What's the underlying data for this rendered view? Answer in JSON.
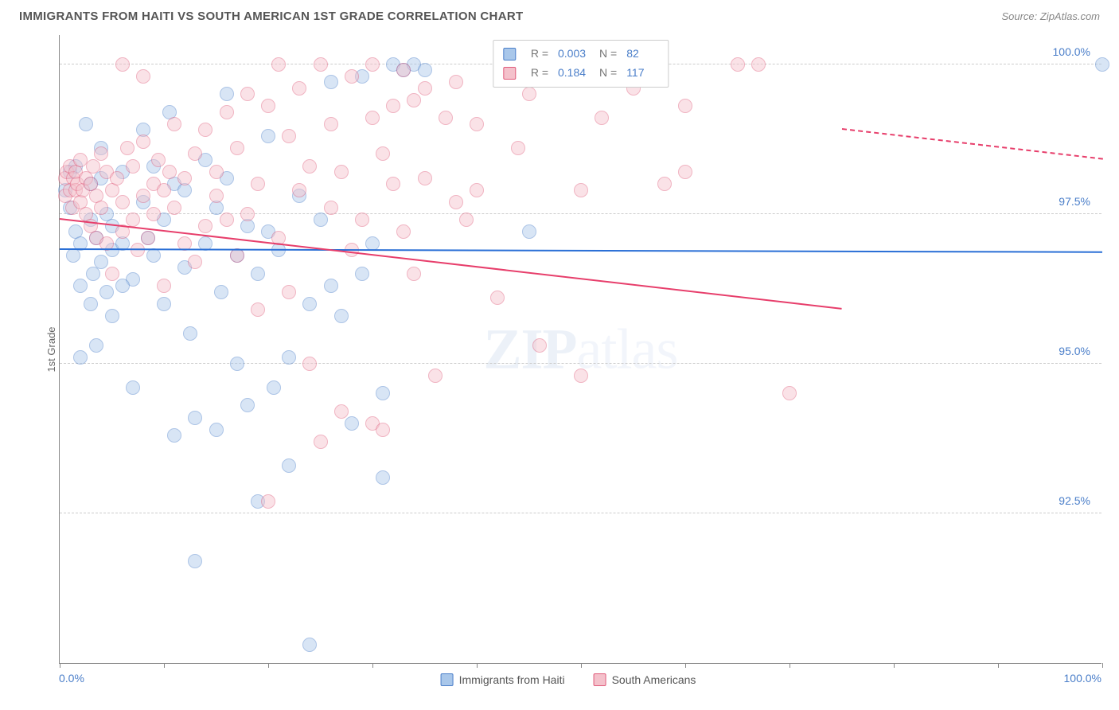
{
  "title": "IMMIGRANTS FROM HAITI VS SOUTH AMERICAN 1ST GRADE CORRELATION CHART",
  "source": "Source: ZipAtlas.com",
  "y_axis_title": "1st Grade",
  "watermark": {
    "part1": "ZIP",
    "part2": "atlas",
    "color1": "#9ab6dd",
    "color2": "#b9cdea"
  },
  "chart": {
    "type": "scatter",
    "background_color": "#ffffff",
    "grid_color": "#cccccc",
    "axis_color": "#888888",
    "xlim": [
      0,
      100
    ],
    "ylim": [
      90,
      100.5
    ],
    "x_ticks": [
      0,
      10,
      20,
      30,
      40,
      50,
      60,
      70,
      80,
      90,
      100
    ],
    "x_label_start": "0.0%",
    "x_label_end": "100.0%",
    "y_grid": [
      {
        "v": 92.5,
        "label": "92.5%"
      },
      {
        "v": 95.0,
        "label": "95.0%"
      },
      {
        "v": 97.5,
        "label": "97.5%"
      },
      {
        "v": 100.0,
        "label": "100.0%"
      }
    ],
    "y_label_color": "#4a7ec9",
    "marker_radius": 9,
    "marker_opacity": 0.45,
    "series": [
      {
        "key": "haiti",
        "name": "Immigrants from Haiti",
        "R": "0.003",
        "N": "82",
        "fill": "#a9c7ea",
        "stroke": "#4a7ec9",
        "trend_color": "#2a6fd6",
        "trend_y_at_xmin": 96.9,
        "trend_y_at_xmax": 96.95,
        "solid_until_x": 100,
        "points": [
          [
            0.5,
            97.9
          ],
          [
            1,
            98.2
          ],
          [
            1,
            97.6
          ],
          [
            1.3,
            96.8
          ],
          [
            1.5,
            97.2
          ],
          [
            1.5,
            98.3
          ],
          [
            2,
            97.0
          ],
          [
            2,
            96.3
          ],
          [
            2,
            95.1
          ],
          [
            2.5,
            99.0
          ],
          [
            3,
            98.0
          ],
          [
            3,
            97.4
          ],
          [
            3,
            96.0
          ],
          [
            3.2,
            96.5
          ],
          [
            3.5,
            97.1
          ],
          [
            3.5,
            95.3
          ],
          [
            4,
            98.6
          ],
          [
            4,
            96.7
          ],
          [
            4.5,
            96.2
          ],
          [
            4.5,
            97.5
          ],
          [
            5,
            96.9
          ],
          [
            5,
            97.3
          ],
          [
            5,
            95.8
          ],
          [
            6,
            97.0
          ],
          [
            6,
            98.2
          ],
          [
            7,
            96.4
          ],
          [
            7,
            94.6
          ],
          [
            8,
            97.7
          ],
          [
            8,
            98.9
          ],
          [
            8.5,
            97.1
          ],
          [
            9,
            98.3
          ],
          [
            9,
            96.8
          ],
          [
            10,
            96.0
          ],
          [
            10,
            97.4
          ],
          [
            10.5,
            99.2
          ],
          [
            11,
            98.0
          ],
          [
            11,
            93.8
          ],
          [
            12,
            96.6
          ],
          [
            12,
            97.9
          ],
          [
            12.5,
            95.5
          ],
          [
            13,
            94.1
          ],
          [
            13,
            91.7
          ],
          [
            14,
            98.4
          ],
          [
            14,
            97.0
          ],
          [
            15,
            93.9
          ],
          [
            15,
            97.6
          ],
          [
            15.5,
            96.2
          ],
          [
            16,
            98.1
          ],
          [
            16,
            99.5
          ],
          [
            17,
            95.0
          ],
          [
            17,
            96.8
          ],
          [
            18,
            97.3
          ],
          [
            18,
            94.3
          ],
          [
            19,
            96.5
          ],
          [
            19,
            92.7
          ],
          [
            20,
            97.2
          ],
          [
            20,
            98.8
          ],
          [
            20.5,
            94.6
          ],
          [
            21,
            96.9
          ],
          [
            22,
            95.1
          ],
          [
            22,
            93.3
          ],
          [
            23,
            97.8
          ],
          [
            24,
            96.0
          ],
          [
            24,
            90.3
          ],
          [
            25,
            97.4
          ],
          [
            26,
            99.7
          ],
          [
            26,
            96.3
          ],
          [
            27,
            95.8
          ],
          [
            28,
            94.0
          ],
          [
            29,
            99.8
          ],
          [
            29,
            96.5
          ],
          [
            30,
            97.0
          ],
          [
            31,
            94.5
          ],
          [
            31,
            93.1
          ],
          [
            32,
            100.0
          ],
          [
            33,
            99.9
          ],
          [
            34,
            100.0
          ],
          [
            35,
            99.9
          ],
          [
            45,
            97.2
          ],
          [
            100,
            100.0
          ],
          [
            4,
            98.1
          ],
          [
            6,
            96.3
          ]
        ]
      },
      {
        "key": "sa",
        "name": "South Americans",
        "R": "0.184",
        "N": "117",
        "fill": "#f4c1cb",
        "stroke": "#e05a7a",
        "trend_color": "#e73e6b",
        "trend_y_at_xmin": 97.4,
        "trend_y_at_xmax": 99.4,
        "solid_until_x": 75,
        "points": [
          [
            0.5,
            98.1
          ],
          [
            0.5,
            97.8
          ],
          [
            0.7,
            98.2
          ],
          [
            1,
            97.9
          ],
          [
            1,
            98.3
          ],
          [
            1.2,
            97.6
          ],
          [
            1.3,
            98.1
          ],
          [
            1.5,
            98.2
          ],
          [
            1.5,
            97.9
          ],
          [
            1.7,
            98.0
          ],
          [
            2,
            97.7
          ],
          [
            2,
            98.4
          ],
          [
            2.2,
            97.9
          ],
          [
            2.5,
            98.1
          ],
          [
            2.5,
            97.5
          ],
          [
            3,
            98.0
          ],
          [
            3,
            97.3
          ],
          [
            3.2,
            98.3
          ],
          [
            3.5,
            97.8
          ],
          [
            3.5,
            97.1
          ],
          [
            4,
            98.5
          ],
          [
            4,
            97.6
          ],
          [
            4.5,
            97.0
          ],
          [
            4.5,
            98.2
          ],
          [
            5,
            97.9
          ],
          [
            5,
            96.5
          ],
          [
            5.5,
            98.1
          ],
          [
            6,
            97.7
          ],
          [
            6,
            97.2
          ],
          [
            6.5,
            98.6
          ],
          [
            7,
            97.4
          ],
          [
            7,
            98.3
          ],
          [
            7.5,
            96.9
          ],
          [
            8,
            97.8
          ],
          [
            8,
            98.7
          ],
          [
            8.5,
            97.1
          ],
          [
            9,
            98.0
          ],
          [
            9,
            97.5
          ],
          [
            9.5,
            98.4
          ],
          [
            10,
            97.9
          ],
          [
            10,
            96.3
          ],
          [
            10.5,
            98.2
          ],
          [
            11,
            97.6
          ],
          [
            11,
            99.0
          ],
          [
            12,
            98.1
          ],
          [
            12,
            97.0
          ],
          [
            13,
            98.5
          ],
          [
            13,
            96.7
          ],
          [
            14,
            97.3
          ],
          [
            14,
            98.9
          ],
          [
            15,
            97.8
          ],
          [
            15,
            98.2
          ],
          [
            16,
            99.2
          ],
          [
            16,
            97.4
          ],
          [
            17,
            98.6
          ],
          [
            17,
            96.8
          ],
          [
            18,
            97.5
          ],
          [
            18,
            99.5
          ],
          [
            19,
            95.9
          ],
          [
            19,
            98.0
          ],
          [
            20,
            92.7
          ],
          [
            20,
            99.3
          ],
          [
            21,
            97.1
          ],
          [
            21,
            100.0
          ],
          [
            22,
            98.8
          ],
          [
            22,
            96.2
          ],
          [
            23,
            99.6
          ],
          [
            23,
            97.9
          ],
          [
            24,
            98.3
          ],
          [
            24,
            95.0
          ],
          [
            25,
            93.7
          ],
          [
            25,
            100.0
          ],
          [
            26,
            97.6
          ],
          [
            26,
            99.0
          ],
          [
            27,
            98.2
          ],
          [
            27,
            94.2
          ],
          [
            28,
            99.8
          ],
          [
            28,
            96.9
          ],
          [
            29,
            97.4
          ],
          [
            30,
            100.0
          ],
          [
            30,
            99.1
          ],
          [
            30,
            94.0
          ],
          [
            31,
            98.5
          ],
          [
            31,
            93.9
          ],
          [
            32,
            99.3
          ],
          [
            32,
            98.0
          ],
          [
            33,
            97.2
          ],
          [
            33,
            99.9
          ],
          [
            34,
            99.4
          ],
          [
            34,
            96.5
          ],
          [
            35,
            99.6
          ],
          [
            35,
            98.1
          ],
          [
            36,
            94.8
          ],
          [
            37,
            99.1
          ],
          [
            38,
            97.7
          ],
          [
            38,
            99.7
          ],
          [
            39,
            97.4
          ],
          [
            40,
            97.9
          ],
          [
            40,
            99.0
          ],
          [
            42,
            96.1
          ],
          [
            44,
            98.6
          ],
          [
            45,
            99.5
          ],
          [
            46,
            95.3
          ],
          [
            48,
            100.0
          ],
          [
            50,
            97.9
          ],
          [
            50,
            94.8
          ],
          [
            52,
            99.1
          ],
          [
            55,
            99.6
          ],
          [
            58,
            98.0
          ],
          [
            60,
            99.3
          ],
          [
            60,
            98.2
          ],
          [
            65,
            100.0
          ],
          [
            67,
            100.0
          ],
          [
            70,
            94.5
          ],
          [
            49,
            100.0
          ],
          [
            6,
            100.0
          ],
          [
            8,
            99.8
          ]
        ]
      }
    ]
  },
  "top_legend_labels": {
    "R": "R =",
    "N": "N ="
  },
  "bottom_legend": [
    {
      "series": "haiti"
    },
    {
      "series": "sa"
    }
  ]
}
